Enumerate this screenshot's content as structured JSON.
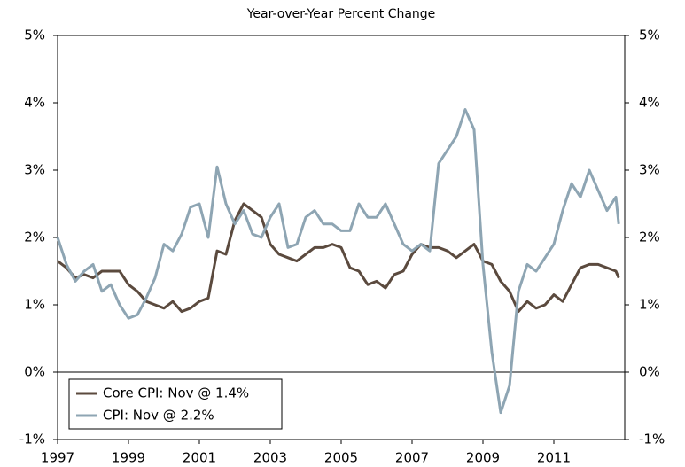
{
  "chart_data": {
    "type": "line",
    "title": "Year-over-Year Percent Change",
    "x": [
      1997,
      1997.25,
      1997.5,
      1997.75,
      1998,
      1998.25,
      1998.5,
      1998.75,
      1999,
      1999.25,
      1999.5,
      1999.75,
      2000,
      2000.25,
      2000.5,
      2000.75,
      2001,
      2001.25,
      2001.5,
      2001.75,
      2002,
      2002.25,
      2002.5,
      2002.75,
      2003,
      2003.25,
      2003.5,
      2003.75,
      2004,
      2004.25,
      2004.5,
      2004.75,
      2005,
      2005.25,
      2005.5,
      2005.75,
      2006,
      2006.25,
      2006.5,
      2006.75,
      2007,
      2007.25,
      2007.5,
      2007.75,
      2008,
      2008.25,
      2008.5,
      2008.75,
      2009,
      2009.25,
      2009.5,
      2009.75,
      2010,
      2010.25,
      2010.5,
      2010.75,
      2011,
      2011.25,
      2011.5,
      2011.75,
      2012,
      2012.25,
      2012.5,
      2012.75,
      2012.83
    ],
    "series": [
      {
        "name": "Core CPI: Nov @ 1.4%",
        "color": "#5b4a3e",
        "values": [
          1.65,
          1.55,
          1.4,
          1.45,
          1.4,
          1.5,
          1.5,
          1.5,
          1.3,
          1.2,
          1.05,
          1.0,
          0.95,
          1.05,
          0.9,
          0.95,
          1.05,
          1.1,
          1.8,
          1.75,
          2.25,
          2.5,
          2.4,
          2.3,
          1.9,
          1.75,
          1.7,
          1.65,
          1.75,
          1.85,
          1.85,
          1.9,
          1.85,
          1.55,
          1.5,
          1.3,
          1.35,
          1.25,
          1.45,
          1.5,
          1.75,
          1.9,
          1.85,
          1.85,
          1.8,
          1.7,
          1.8,
          1.9,
          1.65,
          1.6,
          1.35,
          1.2,
          0.9,
          1.05,
          0.95,
          1.0,
          1.15,
          1.05,
          1.3,
          1.55,
          1.6,
          1.6,
          1.55,
          1.5,
          1.4
        ]
      },
      {
        "name": "CPI: Nov @ 2.2%",
        "color": "#8ea5b3",
        "values": [
          2.0,
          1.6,
          1.35,
          1.5,
          1.6,
          1.2,
          1.3,
          1.0,
          0.8,
          0.85,
          1.1,
          1.4,
          1.9,
          1.8,
          2.05,
          2.45,
          2.5,
          2.0,
          3.05,
          2.5,
          2.2,
          2.4,
          2.05,
          2.0,
          2.3,
          2.5,
          1.85,
          1.9,
          2.3,
          2.4,
          2.2,
          2.2,
          2.1,
          2.1,
          2.5,
          2.3,
          2.3,
          2.5,
          2.2,
          1.9,
          1.8,
          1.9,
          1.8,
          3.1,
          3.3,
          3.5,
          3.9,
          3.6,
          1.6,
          0.3,
          -0.6,
          -0.2,
          1.2,
          1.6,
          1.5,
          1.7,
          1.9,
          2.4,
          2.8,
          2.6,
          3.0,
          2.7,
          2.4,
          2.6,
          2.2
        ]
      }
    ],
    "xlim": [
      1997,
      2013
    ],
    "xticks": [
      1997,
      1999,
      2001,
      2003,
      2005,
      2007,
      2009,
      2011
    ],
    "ylim": [
      -1,
      5
    ],
    "yticks": [
      {
        "value": -1,
        "label": "-1%"
      },
      {
        "value": 0,
        "label": "0%"
      },
      {
        "value": 1,
        "label": "1%"
      },
      {
        "value": 2,
        "label": "2%"
      },
      {
        "value": 3,
        "label": "3%"
      },
      {
        "value": 4,
        "label": "4%"
      },
      {
        "value": 5,
        "label": "5%"
      }
    ],
    "y2lim": [
      -1,
      5
    ],
    "y2ticks": [
      {
        "value": -1,
        "label": "-1%"
      },
      {
        "value": 0,
        "label": "0%"
      },
      {
        "value": 1,
        "label": "1%"
      },
      {
        "value": 2,
        "label": "2%"
      },
      {
        "value": 3,
        "label": "3%"
      },
      {
        "value": 4,
        "label": "4%"
      },
      {
        "value": 5,
        "label": "5%"
      }
    ],
    "legend": "lower-left"
  }
}
